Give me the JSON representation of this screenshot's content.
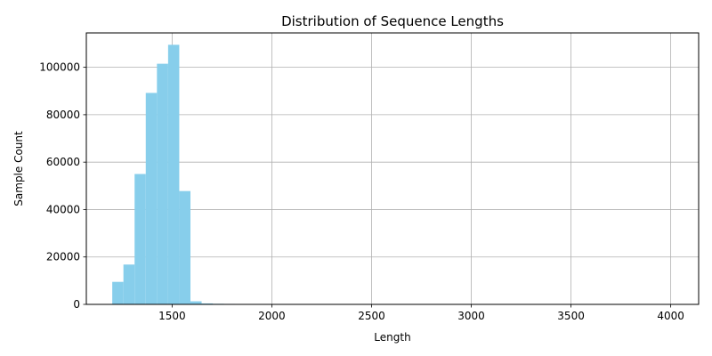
{
  "chart_data": {
    "type": "bar",
    "title": "Distribution of Sequence Lengths",
    "xlabel": "Length",
    "ylabel": "Sample Count",
    "xlim": [
      1070,
      4140
    ],
    "ylim": [
      0,
      114500
    ],
    "xticks": [
      1500,
      2000,
      2500,
      3000,
      3500,
      4000
    ],
    "yticks": [
      0,
      20000,
      40000,
      60000,
      80000,
      100000
    ],
    "grid": true,
    "bar_color": "#87CEEB",
    "bin_width": 56,
    "bins": [
      {
        "x0": 1200,
        "value": 9500
      },
      {
        "x0": 1256,
        "value": 16800
      },
      {
        "x0": 1312,
        "value": 55000
      },
      {
        "x0": 1368,
        "value": 89200
      },
      {
        "x0": 1424,
        "value": 101500
      },
      {
        "x0": 1480,
        "value": 109500
      },
      {
        "x0": 1536,
        "value": 47800
      },
      {
        "x0": 1592,
        "value": 1300
      },
      {
        "x0": 1648,
        "value": 400
      },
      {
        "x0": 1704,
        "value": 250
      },
      {
        "x0": 1760,
        "value": 200
      },
      {
        "x0": 1816,
        "value": 150
      },
      {
        "x0": 1872,
        "value": 120
      },
      {
        "x0": 1928,
        "value": 80
      }
    ]
  }
}
